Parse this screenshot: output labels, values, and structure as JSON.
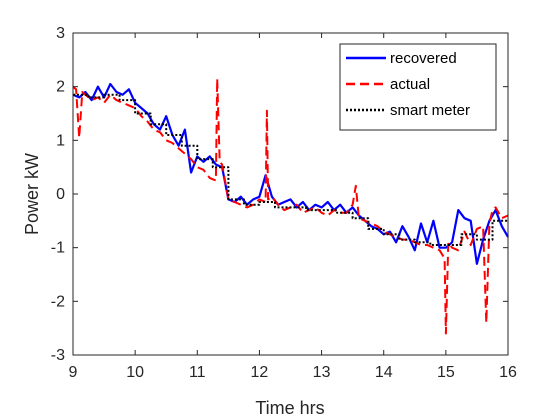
{
  "chart_data": {
    "type": "line",
    "title": "",
    "xlabel": "Time hrs",
    "ylabel": "Power kW",
    "xlim": [
      9,
      16
    ],
    "ylim": [
      -3,
      3
    ],
    "xticks": [
      9,
      10,
      11,
      12,
      13,
      14,
      15,
      16
    ],
    "yticks": [
      -3,
      -2,
      -1,
      0,
      1,
      2,
      3
    ],
    "grid": false,
    "legend_position": "top-right",
    "series": [
      {
        "name": "recovered",
        "color": "#0000ff",
        "style": "solid",
        "x": [
          9.0,
          9.1,
          9.2,
          9.3,
          9.4,
          9.5,
          9.6,
          9.7,
          9.8,
          9.9,
          10.0,
          10.1,
          10.2,
          10.3,
          10.4,
          10.5,
          10.6,
          10.7,
          10.8,
          10.9,
          11.0,
          11.1,
          11.2,
          11.3,
          11.4,
          11.5,
          11.6,
          11.7,
          11.8,
          11.9,
          12.0,
          12.1,
          12.2,
          12.3,
          12.4,
          12.5,
          12.6,
          12.7,
          12.8,
          12.9,
          13.0,
          13.1,
          13.2,
          13.3,
          13.4,
          13.5,
          13.6,
          13.7,
          13.8,
          13.9,
          14.0,
          14.1,
          14.2,
          14.3,
          14.4,
          14.5,
          14.6,
          14.7,
          14.8,
          14.9,
          15.0,
          15.1,
          15.2,
          15.3,
          15.4,
          15.5,
          15.6,
          15.7,
          15.8,
          15.9,
          16.0
        ],
        "y": [
          1.85,
          1.8,
          1.9,
          1.75,
          2.0,
          1.8,
          2.05,
          1.9,
          1.85,
          1.95,
          1.7,
          1.6,
          1.5,
          1.3,
          1.2,
          1.45,
          1.1,
          0.9,
          1.2,
          0.4,
          0.7,
          0.6,
          0.7,
          0.55,
          0.5,
          -0.1,
          -0.15,
          -0.05,
          -0.2,
          -0.1,
          -0.05,
          0.35,
          -0.05,
          -0.2,
          -0.15,
          -0.1,
          -0.25,
          -0.15,
          -0.3,
          -0.2,
          -0.25,
          -0.15,
          -0.3,
          -0.2,
          -0.35,
          -0.25,
          -0.4,
          -0.5,
          -0.6,
          -0.65,
          -0.75,
          -0.7,
          -0.9,
          -0.6,
          -0.8,
          -1.05,
          -0.55,
          -0.9,
          -0.5,
          -1.0,
          -1.0,
          -0.9,
          -0.3,
          -0.45,
          -0.5,
          -1.3,
          -0.85,
          -0.5,
          -0.3,
          -0.6,
          -0.8
        ]
      },
      {
        "name": "actual",
        "color": "#ff0000",
        "style": "dashed",
        "x": [
          9.0,
          9.05,
          9.1,
          9.15,
          9.2,
          9.3,
          9.4,
          9.5,
          9.6,
          9.7,
          9.8,
          9.9,
          10.0,
          10.1,
          10.2,
          10.3,
          10.4,
          10.5,
          10.6,
          10.7,
          10.8,
          10.9,
          11.0,
          11.1,
          11.2,
          11.3,
          11.32,
          11.36,
          11.4,
          11.5,
          11.6,
          11.7,
          11.8,
          11.9,
          12.0,
          12.1,
          12.12,
          12.14,
          12.2,
          12.3,
          12.4,
          12.5,
          12.6,
          12.7,
          12.8,
          12.9,
          13.0,
          13.1,
          13.2,
          13.3,
          13.4,
          13.5,
          13.55,
          13.6,
          13.7,
          13.8,
          13.9,
          14.0,
          14.1,
          14.2,
          14.3,
          14.4,
          14.5,
          14.6,
          14.7,
          14.8,
          14.9,
          14.98,
          15.0,
          15.04,
          15.1,
          15.2,
          15.3,
          15.4,
          15.5,
          15.6,
          15.65,
          15.7,
          15.75,
          15.8,
          15.9,
          16.0
        ],
        "y": [
          2.0,
          1.95,
          1.05,
          1.9,
          1.85,
          1.75,
          1.8,
          1.7,
          1.85,
          1.75,
          1.7,
          1.65,
          1.6,
          1.45,
          1.35,
          1.2,
          1.15,
          1.0,
          0.95,
          0.85,
          0.75,
          0.65,
          0.5,
          0.45,
          0.3,
          0.25,
          2.15,
          0.6,
          0.55,
          -0.1,
          -0.15,
          -0.2,
          -0.25,
          -0.2,
          -0.1,
          -0.15,
          1.55,
          -0.1,
          -0.05,
          -0.2,
          -0.3,
          -0.25,
          -0.2,
          -0.35,
          -0.3,
          -0.25,
          -0.35,
          -0.4,
          -0.3,
          -0.35,
          -0.35,
          -0.2,
          0.15,
          -0.45,
          -0.5,
          -0.55,
          -0.6,
          -0.7,
          -0.75,
          -0.8,
          -0.85,
          -0.85,
          -0.9,
          -0.95,
          -0.95,
          -1.0,
          -1.05,
          -1.2,
          -2.6,
          -0.9,
          -1.0,
          -1.05,
          -0.7,
          -0.95,
          -0.65,
          -0.6,
          -2.4,
          -0.55,
          -0.3,
          -0.25,
          -0.45,
          -0.4
        ]
      },
      {
        "name": "smart meter",
        "color": "#000000",
        "style": "dotted",
        "x": [
          9.0,
          9.25,
          9.25,
          9.5,
          9.5,
          9.75,
          9.75,
          10.0,
          10.0,
          10.25,
          10.25,
          10.5,
          10.5,
          10.75,
          10.75,
          11.0,
          11.0,
          11.25,
          11.25,
          11.5,
          11.5,
          11.75,
          11.75,
          12.0,
          12.0,
          12.25,
          12.25,
          12.5,
          12.5,
          12.75,
          12.75,
          13.0,
          13.0,
          13.25,
          13.25,
          13.5,
          13.5,
          13.75,
          13.75,
          14.0,
          14.0,
          14.25,
          14.25,
          14.5,
          14.5,
          14.75,
          14.75,
          15.0,
          15.0,
          15.25,
          15.25,
          15.5,
          15.5,
          15.75,
          15.75,
          16.0
        ],
        "y": [
          1.85,
          1.85,
          1.8,
          1.8,
          1.85,
          1.85,
          1.75,
          1.75,
          1.5,
          1.5,
          1.3,
          1.3,
          1.1,
          1.1,
          0.9,
          0.9,
          0.65,
          0.65,
          0.5,
          0.5,
          -0.1,
          -0.1,
          -0.2,
          -0.2,
          -0.15,
          -0.15,
          -0.25,
          -0.25,
          -0.25,
          -0.25,
          -0.3,
          -0.3,
          -0.3,
          -0.3,
          -0.35,
          -0.35,
          -0.45,
          -0.45,
          -0.65,
          -0.65,
          -0.75,
          -0.75,
          -0.85,
          -0.85,
          -0.9,
          -0.9,
          -0.95,
          -0.95,
          -0.95,
          -0.95,
          -0.75,
          -0.75,
          -0.85,
          -0.85,
          -0.5,
          -0.5
        ]
      }
    ]
  }
}
